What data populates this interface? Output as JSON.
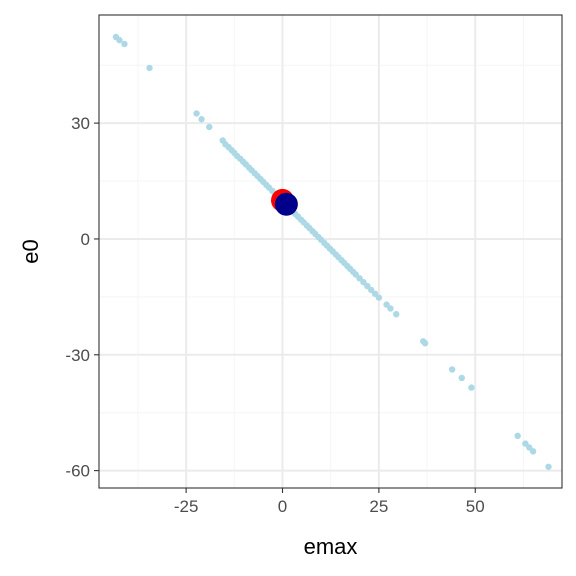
{
  "chart_data": {
    "type": "scatter",
    "title": "",
    "xlabel": "emax",
    "ylabel": "e0",
    "xlim": [
      -47.6,
      72.5
    ],
    "ylim": [
      -64.5,
      58.0
    ],
    "grid": true,
    "legend": "none",
    "x_ticks": [
      {
        "value": -25,
        "label": "-25"
      },
      {
        "value": 0,
        "label": "0"
      },
      {
        "value": 25,
        "label": "25"
      },
      {
        "value": 50,
        "label": "50"
      }
    ],
    "y_ticks": [
      {
        "value": 30,
        "label": "30"
      },
      {
        "value": 0,
        "label": "0"
      },
      {
        "value": -30,
        "label": "-30"
      },
      {
        "value": -60,
        "label": "-60"
      }
    ],
    "colors": {
      "samples": "#add8e6",
      "truth": "#ff0000",
      "estimate": "#00008b",
      "panel_border": "#333333",
      "grid_major": "#ebebeb",
      "grid_minor": "#f5f5f5"
    },
    "series": [
      {
        "role": "samples",
        "x": [
          -43.2,
          -42.3,
          -41.0,
          -34.5,
          -22.3,
          -21.0,
          -19.0,
          -15.5,
          -14.8,
          -14.0,
          -13.2,
          -12.5,
          -11.8,
          -11.0,
          -10.2,
          -9.5,
          -8.7,
          -8.0,
          -7.2,
          -6.5,
          -5.7,
          -5.0,
          -4.2,
          -3.5,
          -2.7,
          -2.0,
          -1.2,
          -0.5,
          0.3,
          1.0,
          1.8,
          2.5,
          3.3,
          4.0,
          4.8,
          5.5,
          6.3,
          7.0,
          7.8,
          8.5,
          9.3,
          10.0,
          10.8,
          11.5,
          12.3,
          13.0,
          13.8,
          14.5,
          15.3,
          16.0,
          16.8,
          17.5,
          18.3,
          19.0,
          20.0,
          21.0,
          22.0,
          23.0,
          24.0,
          25.0,
          27.0,
          28.0,
          29.5,
          36.5,
          37.0,
          44.0,
          46.5,
          49.0,
          61.0,
          63.0,
          64.0,
          65.0,
          69.0
        ],
        "y": [
          52.3,
          51.5,
          50.5,
          44.3,
          32.5,
          31.0,
          29.0,
          25.5,
          24.5,
          23.8,
          23.0,
          22.3,
          21.5,
          20.8,
          20.0,
          19.3,
          18.5,
          17.8,
          17.0,
          16.3,
          15.5,
          14.8,
          14.0,
          13.3,
          12.5,
          11.8,
          11.0,
          10.3,
          9.5,
          8.8,
          8.0,
          7.3,
          6.5,
          5.8,
          5.0,
          4.3,
          3.5,
          2.8,
          2.0,
          1.3,
          0.5,
          -0.2,
          -1.0,
          -1.7,
          -2.5,
          -3.2,
          -4.0,
          -4.7,
          -5.5,
          -6.2,
          -7.0,
          -7.7,
          -8.5,
          -9.2,
          -10.2,
          -11.2,
          -12.2,
          -13.2,
          -14.2,
          -15.2,
          -17.0,
          -18.0,
          -19.5,
          -26.5,
          -27.0,
          -33.8,
          -36.0,
          -38.5,
          -51.0,
          -53.0,
          -54.0,
          -55.0,
          -59.0
        ]
      },
      {
        "role": "truth",
        "x": [
          0
        ],
        "y": [
          10
        ]
      },
      {
        "role": "estimate",
        "x": [
          1
        ],
        "y": [
          9
        ]
      }
    ]
  }
}
